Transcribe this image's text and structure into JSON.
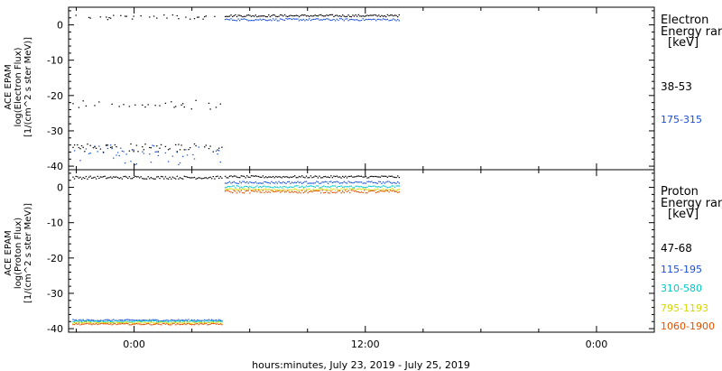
{
  "chart_data": [
    {
      "type": "scatter",
      "panel": "top",
      "ylabel": [
        "ACE EPAM",
        "log(Electron Flux)",
        "[1/(cm^2 s ster MeV)]"
      ],
      "ylim": [
        -41,
        5
      ],
      "yticks": [
        0,
        -10,
        -20,
        -30,
        -40
      ],
      "legend_title": [
        "Electron",
        "Energy ran"
      ],
      "legend_unit": "[keV]",
      "series": [
        {
          "name": "38-53",
          "color": "#000000",
          "segments": [
            [
              -3.2,
              4.6,
              2.2,
              0.7,
              -22.6,
              1.3
            ],
            [
              4.7,
              13.8,
              2.6,
              0.3
            ]
          ]
        },
        {
          "name": "175-315",
          "color": "#1a4fd8",
          "segments": [
            [
              -3.2,
              4.6,
              -37.6,
              2.2,
              -35.5,
              1.5
            ],
            [
              4.7,
              13.8,
              1.5,
              0.3
            ]
          ]
        }
      ],
      "extra_black_scatter": [
        -3.2,
        4.6,
        -34.8,
        1.2
      ]
    },
    {
      "type": "scatter",
      "panel": "bottom",
      "ylabel": [
        "ACE EPAM",
        "log(Proton Flux)",
        "[1/(cm^2 s ster MeV)]"
      ],
      "ylim": [
        -41,
        5
      ],
      "yticks": [
        0,
        -10,
        -20,
        -30,
        -40
      ],
      "legend_title": [
        "Proton",
        "Energy ran"
      ],
      "legend_unit": "[keV]",
      "series": [
        {
          "name": "47-68",
          "color": "#000000",
          "segments": [
            [
              -3.2,
              4.6,
              2.8,
              0.4
            ],
            [
              4.7,
              13.8,
              3.0,
              0.3
            ]
          ]
        },
        {
          "name": "115-195",
          "color": "#1a4fd8",
          "segments": [
            [
              -3.2,
              4.6,
              -37.6,
              0.2
            ],
            [
              4.7,
              13.8,
              1.4,
              0.3
            ]
          ]
        },
        {
          "name": "310-580",
          "color": "#00c8c8",
          "segments": [
            [
              -3.2,
              4.6,
              -37.9,
              0.2
            ],
            [
              4.7,
              13.8,
              0.2,
              0.3
            ]
          ]
        },
        {
          "name": "795-1193",
          "color": "#d6d600",
          "segments": [
            [
              -3.2,
              4.6,
              -38.3,
              0.2
            ],
            [
              4.7,
              13.8,
              -0.6,
              0.3
            ]
          ]
        },
        {
          "name": "1060-1900",
          "color": "#e05000",
          "segments": [
            [
              -3.2,
              4.6,
              -38.7,
              0.2
            ],
            [
              4.7,
              13.8,
              -1.2,
              0.4
            ]
          ]
        }
      ]
    }
  ],
  "xaxis": {
    "range_hours": [
      -3.4,
      27.0
    ],
    "ticks": [
      {
        "h": 0,
        "label": "0:00"
      },
      {
        "h": 12,
        "label": "12:00"
      },
      {
        "h": 24,
        "label": "0:00"
      }
    ],
    "label": "hours:minutes, July 23, 2019 - July 25, 2019"
  }
}
